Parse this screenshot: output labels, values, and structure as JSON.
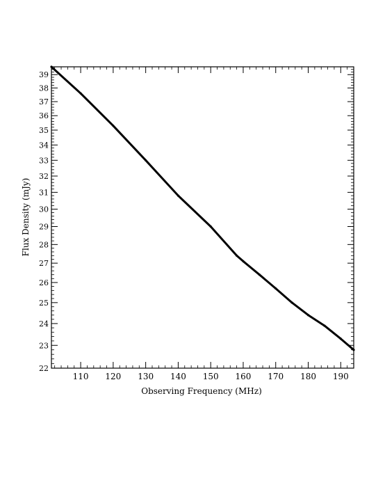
{
  "chart_data": {
    "type": "line",
    "title": "",
    "xlabel": "Observing Frequency (MHz)",
    "ylabel": "Flux Density (mJy)",
    "xlim": [
      101,
      194
    ],
    "ylim": [
      22,
      39.6
    ],
    "y_scale": "log",
    "grid": false,
    "legend": "none",
    "x_ticks": [
      110,
      120,
      130,
      140,
      150,
      160,
      170,
      180,
      190
    ],
    "y_ticks": [
      22,
      23,
      24,
      25,
      26,
      27,
      28,
      29,
      30,
      31,
      32,
      33,
      34,
      35,
      36,
      37,
      38,
      39
    ],
    "series": [
      {
        "color": "#000000",
        "x": [
          101,
          110,
          120,
          130,
          140,
          150,
          158,
          160,
          165,
          170,
          175,
          180,
          185,
          190,
          194
        ],
        "y": [
          39.6,
          37.6,
          35.3,
          33.0,
          30.8,
          29.0,
          27.4,
          27.1,
          26.4,
          25.7,
          25.0,
          24.4,
          23.9,
          23.3,
          22.8
        ]
      }
    ]
  }
}
